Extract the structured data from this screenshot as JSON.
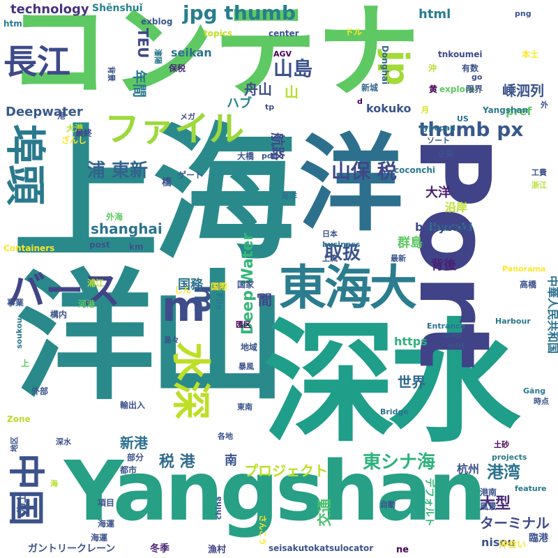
{
  "words": [
    {
      "text": "コンテナ",
      "color": "#5ec962"
    },
    {
      "text": "上海",
      "color": "#2a8a8b"
    },
    {
      "text": "洋山",
      "color": "#2a8a8b"
    },
    {
      "text": "深水",
      "color": "#1f9e89"
    },
    {
      "text": "洋",
      "color": "#2d708e"
    },
    {
      "text": "Yangshan",
      "color": "#27a085"
    },
    {
      "text": "Port",
      "color": "#404387"
    },
    {
      "text": "東海大",
      "color": "#2b7c8e"
    },
    {
      "text": "埠頭",
      "color": "#2a798e"
    },
    {
      "text": "ファイル",
      "color": "#9dd93b"
    },
    {
      "text": "バース",
      "color": "#414487"
    },
    {
      "text": "長江",
      "color": "#3e4a89"
    },
    {
      "text": "水深",
      "color": "#bddf26"
    },
    {
      "text": "m",
      "color": "#3e4c8a"
    },
    {
      "text": "m",
      "color": "#3b528b"
    },
    {
      "text": "jp",
      "color": "#a2da37"
    },
    {
      "text": "中国",
      "color": "#3b528b"
    },
    {
      "text": "jpg thumb",
      "color": "#277f8e"
    },
    {
      "text": "thumb px",
      "color": "#38588c"
    },
    {
      "text": "山島",
      "color": "#3b528b"
    },
    {
      "text": "山保 税",
      "color": "#3f4788"
    },
    {
      "text": "浦 東新",
      "color": "#33638d"
    },
    {
      "text": "東シナ海",
      "color": "#2db27d"
    },
    {
      "text": "取扱",
      "color": "#3b528b"
    },
    {
      "text": "港湾",
      "color": "#2c738e"
    },
    {
      "text": "大型",
      "color": "#482878"
    },
    {
      "text": "ターミナル",
      "color": "#3e4989"
    },
    {
      "text": "プロジェクト",
      "color": "#bddf26"
    },
    {
      "text": "税 港",
      "color": "#306a8e"
    },
    {
      "text": "Deep Water",
      "color": "#35b779"
    },
    {
      "text": "shanghai",
      "color": "#2c738e"
    },
    {
      "text": "世界",
      "color": "#31678e"
    },
    {
      "text": "背後",
      "color": "#482173"
    },
    {
      "text": "群島",
      "color": "#5ec962"
    },
    {
      "text": "嵊泗列",
      "color": "#3b528b"
    },
    {
      "text": "年間",
      "color": "#2a788e"
    },
    {
      "text": "TEU",
      "color": "#3f4889"
    },
    {
      "text": "ハブ",
      "color": "#26828e"
    },
    {
      "text": "technology",
      "color": "#46337e"
    },
    {
      "text": "html",
      "color": "#287c8e"
    },
    {
      "text": "Deepwater",
      "color": "#38598c"
    },
    {
      "text": "航路",
      "color": "#3e4a89"
    },
    {
      "text": "舟山",
      "color": "#3e4c8a"
    },
    {
      "text": "山",
      "color": "#b5de2b"
    },
    {
      "text": "pref",
      "color": "#5ec962"
    },
    {
      "text": "国務",
      "color": "#2c728e"
    },
    {
      "text": "間",
      "color": "#404588"
    },
    {
      "text": "新港",
      "color": "#2d708e"
    },
    {
      "text": "南",
      "color": "#3a538b"
    },
    {
      "text": "杭州",
      "color": "#3b518b"
    },
    {
      "text": "大洋",
      "color": "#481b6d"
    },
    {
      "text": "沿岸",
      "color": "#b8de29"
    },
    {
      "text": "ibaraki",
      "color": "#2c728e"
    },
    {
      "text": "bukyoku",
      "color": "#3f4889"
    },
    {
      "text": "kokuko",
      "color": "#3b528b"
    },
    {
      "text": "seikan",
      "color": "#2d708e"
    },
    {
      "text": "https",
      "color": "#2db27d"
    },
    {
      "text": "nisou",
      "color": "#3b528b"
    },
    {
      "text": "交通",
      "color": "#4ac16d"
    },
    {
      "text": "デフォルト",
      "color": "#35b779"
    },
    {
      "text": "Zone",
      "color": "#b8de29"
    },
    {
      "text": "ガントリークレーン",
      "color": "#3b528b"
    },
    {
      "text": "冬季",
      "color": "#482173"
    },
    {
      "text": "漁村",
      "color": "#414487"
    },
    {
      "text": "seisakutokatsulocator",
      "color": "#3b528b"
    },
    {
      "text": "ne",
      "color": "#440154"
    },
    {
      "text": "沖合い",
      "color": "#fde725"
    },
    {
      "text": "臨港",
      "color": "#3b528b"
    },
    {
      "text": "Shēnshuǐ",
      "color": "#26828e"
    },
    {
      "text": "exblog",
      "color": "#39568c"
    },
    {
      "text": "htm",
      "color": "#2a788e"
    },
    {
      "text": "topics",
      "color": "#c2df23"
    },
    {
      "text": "center",
      "color": "#3b528b"
    },
    {
      "text": "ドル",
      "color": "#fde725"
    },
    {
      "text": "Donghai",
      "color": "#31688e"
    },
    {
      "text": "tnkoumei",
      "color": "#3e4989"
    },
    {
      "text": "本土",
      "color": "#fde725"
    },
    {
      "text": "png",
      "color": "#3b528b"
    },
    {
      "text": "AGV",
      "color": "#440154"
    },
    {
      "text": "保税",
      "color": "#482475"
    },
    {
      "text": "有数",
      "color": "#3b528b"
    },
    {
      "text": "go",
      "color": "#3e4a89"
    },
    {
      "text": "沖",
      "color": "#b5de2b"
    },
    {
      "text": "黄",
      "color": "#440154"
    },
    {
      "text": "explore",
      "color": "#5ec962"
    },
    {
      "text": "限界",
      "color": "#3b528b"
    },
    {
      "text": "新城",
      "color": "#31688e"
    },
    {
      "text": "外",
      "color": "#3b528b"
    },
    {
      "text": "US",
      "color": "#2d708e"
    },
    {
      "text": "Yangshan",
      "color": "#2a788e"
    },
    {
      "text": "d",
      "color": "#440154"
    },
    {
      "text": "月",
      "color": "#d8e219"
    },
    {
      "text": "tp",
      "color": "#3b528b"
    },
    {
      "text": "メガ",
      "color": "#3e4989"
    },
    {
      "text": "港",
      "color": "#3b528b"
    },
    {
      "text": "大港",
      "color": "#b5de2b"
    },
    {
      "text": "最終",
      "color": "#3f4788"
    },
    {
      "text": "ざんし",
      "color": "#fde725"
    },
    {
      "text": "typepad",
      "color": "#2c728e"
    },
    {
      "text": "ソート",
      "color": "#3b528b"
    },
    {
      "text": "企業",
      "color": "#3b528b"
    },
    {
      "text": "工費",
      "color": "#3b528b"
    },
    {
      "text": "浙江",
      "color": "#b5de2b"
    },
    {
      "text": "大橋",
      "color": "#3b528b"
    },
    {
      "text": "pdf",
      "color": "#3b528b"
    },
    {
      "text": "ゲート",
      "color": "#3b528b"
    },
    {
      "text": "coconchi",
      "color": "#2a788e"
    },
    {
      "text": "橋",
      "color": "#3b528b"
    },
    {
      "text": "海洋",
      "color": "#2c728e"
    },
    {
      "text": "外海",
      "color": "#5ec962"
    },
    {
      "text": "Containers",
      "color": "#fde725"
    },
    {
      "text": "post",
      "color": "#3b528b"
    },
    {
      "text": "km",
      "color": "#3b528b"
    },
    {
      "text": "日本",
      "color": "#3b528b"
    },
    {
      "text": "business",
      "color": "#2c728e"
    },
    {
      "text": "上流",
      "color": "#3b528b"
    },
    {
      "text": "最新",
      "color": "#3b528b"
    },
    {
      "text": "Panorama",
      "color": "#fde725"
    },
    {
      "text": "浦江",
      "color": "#b5de2b"
    },
    {
      "text": "しん",
      "color": "#fde725"
    },
    {
      "text": "国際",
      "color": "#fde725"
    },
    {
      "text": "国家",
      "color": "#3b528b"
    },
    {
      "text": "rp",
      "color": "#3b528b"
    },
    {
      "text": "高橋",
      "color": "#3b528b"
    },
    {
      "text": "中華人民共和国",
      "color": "#2c728e"
    },
    {
      "text": "河港",
      "color": "#5ec962"
    },
    {
      "text": "事業",
      "color": "#3b528b"
    },
    {
      "text": "構内",
      "color": "#3b528b"
    },
    {
      "text": "File",
      "color": "#2a788e"
    },
    {
      "text": "匯区",
      "color": "#440154"
    },
    {
      "text": "Entrance",
      "color": "#2c728e"
    },
    {
      "text": "Harbour",
      "color": "#2a788e"
    },
    {
      "text": "島々",
      "color": "#3b528b"
    },
    {
      "text": "地域",
      "color": "#3b528b"
    },
    {
      "text": "map",
      "color": "#3b528b"
    },
    {
      "text": "mlit",
      "color": "#3b528b"
    },
    {
      "text": "soukou",
      "color": "#2a788e"
    },
    {
      "text": "上",
      "color": "#5ec962"
    },
    {
      "text": "暴風",
      "color": "#3b528b"
    },
    {
      "text": "東南",
      "color": "#3b528b"
    },
    {
      "text": "外部",
      "color": "#3b528b"
    },
    {
      "text": "輸出入",
      "color": "#3b528b"
    },
    {
      "text": "Găng",
      "color": "#2a788e"
    },
    {
      "text": "時点",
      "color": "#3b528b"
    },
    {
      "text": "Bridge",
      "color": "#2c728e"
    },
    {
      "text": "深水",
      "color": "#3b528b"
    },
    {
      "text": "各地",
      "color": "#3b528b"
    },
    {
      "text": "地区",
      "color": "#3b528b"
    },
    {
      "text": "部分",
      "color": "#3b528b"
    },
    {
      "text": "都市",
      "color": "#3b528b"
    },
    {
      "text": "projects",
      "color": "#2a788e"
    },
    {
      "text": "土砂",
      "color": "#440154"
    },
    {
      "text": "海",
      "color": "#b5de2b"
    },
    {
      "text": "項目",
      "color": "#3b528b"
    },
    {
      "text": "海運",
      "color": "#3b528b"
    },
    {
      "text": "china",
      "color": "#3b528b"
    },
    {
      "text": "さんこう",
      "color": "#fde725"
    },
    {
      "text": "自動",
      "color": "#3b528b"
    },
    {
      "text": "feature",
      "color": "#2a788e"
    },
    {
      "text": "港南",
      "color": "#3b528b"
    },
    {
      "text": "風景",
      "color": "#3b528b"
    },
    {
      "text": "海上",
      "color": "#3b528b"
    },
    {
      "text": "背景",
      "color": "#3b528b"
    },
    {
      "text": "瀋陽",
      "color": "#2a788e"
    },
    {
      "text": "海運",
      "color": "#3b528b"
    }
  ]
}
